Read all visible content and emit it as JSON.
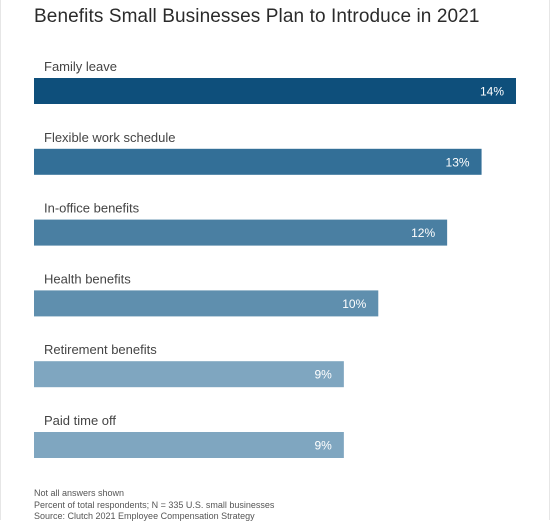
{
  "chart_data": {
    "type": "bar",
    "orientation": "horizontal",
    "title": "Benefits Small Businesses Plan to Introduce in 2021",
    "categories": [
      "Family leave",
      "Flexible work schedule",
      "In-office benefits",
      "Health benefits",
      "Retirement benefits",
      "Paid time off"
    ],
    "values": [
      14,
      13,
      12,
      10,
      9,
      9
    ],
    "value_labels": [
      "14%",
      "13%",
      "12%",
      "10%",
      "9%",
      "9%"
    ],
    "unit": "%",
    "xlim": [
      0,
      14
    ],
    "grid": false,
    "legend": "none",
    "bar_colors": [
      "#0e4f7b",
      "#336f97",
      "#4a7fa2",
      "#5f8fae",
      "#7fa6c0",
      "#7fa6c0"
    ]
  },
  "notes": [
    "Not all answers shown",
    "Percent of total respondents; N = 335 U.S. small businesses",
    "Source: Clutch 2021 Employee Compensation Strategy"
  ]
}
